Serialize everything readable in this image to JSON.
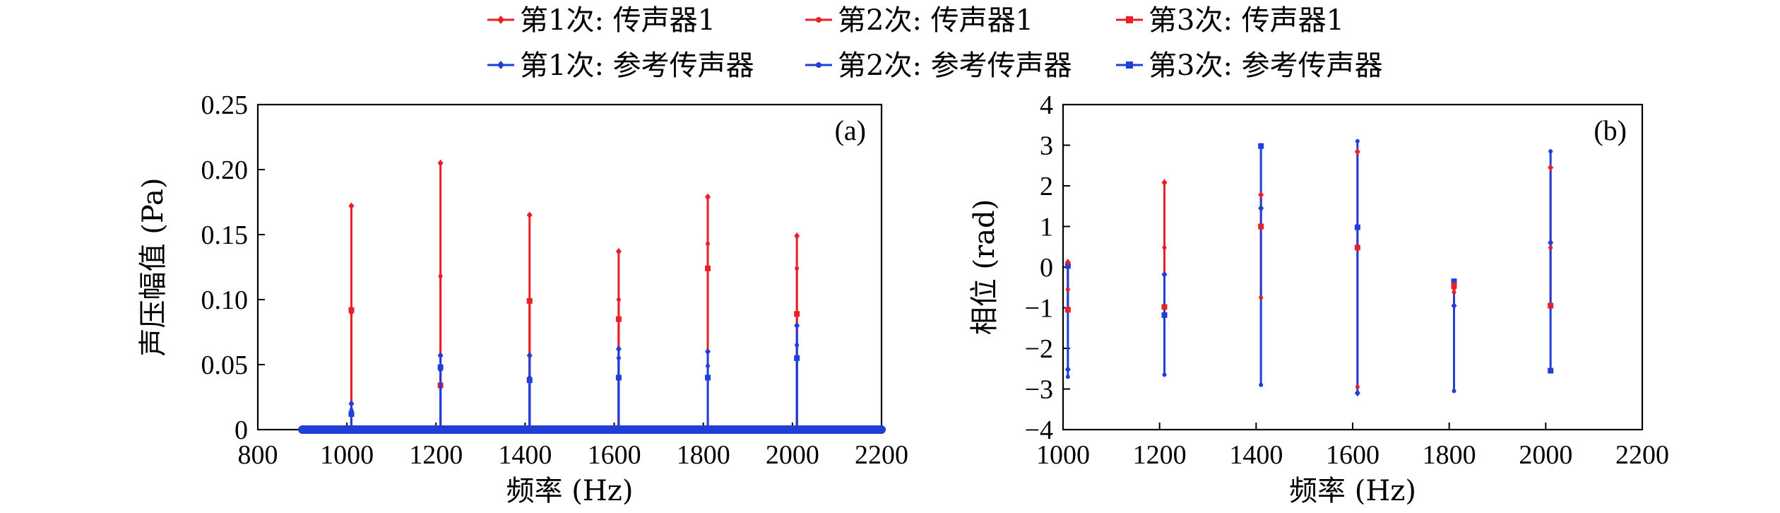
{
  "legend": {
    "position": "top-center",
    "columns": 3,
    "entries": [
      {
        "label": "第1次: 传声器1",
        "color": "#e8202a",
        "marker": "diamond"
      },
      {
        "label": "第2次: 传声器1",
        "color": "#e8202a",
        "marker": "dot"
      },
      {
        "label": "第3次: 传声器1",
        "color": "#e8202a",
        "marker": "square"
      },
      {
        "label": "第1次: 参考传声器",
        "color": "#1f3fd6",
        "marker": "diamond"
      },
      {
        "label": "第2次: 参考传声器",
        "color": "#1f3fd6",
        "marker": "dot"
      },
      {
        "label": "第3次: 参考传声器",
        "color": "#1f3fd6",
        "marker": "square"
      }
    ]
  },
  "chart_data": [
    {
      "panel": "(a)",
      "type": "line",
      "xlabel": "频率 (Hz)",
      "ylabel": "声压幅值 (Pa)",
      "xlim": [
        800,
        2200
      ],
      "ylim": [
        0,
        0.25
      ],
      "xticks": [
        800,
        1000,
        1200,
        1400,
        1600,
        1800,
        2000,
        2200
      ],
      "yticks": [
        0,
        0.05,
        0.1,
        0.15,
        0.2,
        0.25
      ],
      "ytick_labels": [
        "0",
        "0.05",
        "0.10",
        "0.15",
        "0.20",
        "0.25"
      ],
      "baseline_range": [
        900,
        2200
      ],
      "grid": false,
      "x": [
        1010,
        1210,
        1410,
        1610,
        1810,
        2010
      ],
      "series": [
        {
          "name": "第1次: 传声器1",
          "values": [
            0.172,
            0.205,
            0.165,
            0.137,
            0.179,
            0.149
          ]
        },
        {
          "name": "第2次: 传声器1",
          "values": [
            0.09,
            0.118,
            0.099,
            0.1,
            0.143,
            0.124
          ]
        },
        {
          "name": "第3次: 传声器1",
          "values": [
            0.092,
            0.034,
            0.099,
            0.085,
            0.124,
            0.089
          ]
        },
        {
          "name": "第1次: 参考传声器",
          "values": [
            0.02,
            0.057,
            0.057,
            0.062,
            0.06,
            0.08
          ]
        },
        {
          "name": "第2次: 参考传声器",
          "values": [
            0.015,
            0.046,
            0.04,
            0.055,
            0.049,
            0.065
          ]
        },
        {
          "name": "第3次: 参考传声器",
          "values": [
            0.012,
            0.048,
            0.038,
            0.04,
            0.04,
            0.055
          ]
        }
      ]
    },
    {
      "panel": "(b)",
      "type": "line",
      "xlabel": "频率 (Hz)",
      "ylabel": "相位 (rad)",
      "xlim": [
        1000,
        2200
      ],
      "ylim": [
        -4,
        4
      ],
      "xticks": [
        1000,
        1200,
        1400,
        1600,
        1800,
        2000,
        2200
      ],
      "yticks": [
        -4,
        -3,
        -2,
        -1,
        0,
        1,
        2,
        3,
        4
      ],
      "ytick_labels": [
        "−4",
        "−3",
        "−2",
        "−1",
        "0",
        "1",
        "2",
        "3",
        "4"
      ],
      "grid": false,
      "x": [
        1010,
        1210,
        1410,
        1610,
        1810,
        2010
      ],
      "series": [
        {
          "name": "第1次: 传声器1",
          "values": [
            0.12,
            2.08,
            1.78,
            2.84,
            -0.52,
            2.45
          ]
        },
        {
          "name": "第2次: 传声器1",
          "values": [
            -0.55,
            0.48,
            -0.75,
            -2.95,
            -0.62,
            0.48
          ]
        },
        {
          "name": "第3次: 传声器1",
          "values": [
            -1.05,
            -0.98,
            1.0,
            0.48,
            -0.45,
            -0.95
          ]
        },
        {
          "name": "第1次: 参考传声器",
          "values": [
            -2.52,
            -0.18,
            1.45,
            -3.1,
            -0.95,
            0.6
          ]
        },
        {
          "name": "第2次: 参考传声器",
          "values": [
            -2.7,
            -2.65,
            -2.9,
            3.1,
            -3.05,
            2.85
          ]
        },
        {
          "name": "第3次: 参考传声器",
          "values": [
            0.03,
            -1.18,
            2.98,
            0.98,
            -0.35,
            -2.55
          ]
        }
      ]
    }
  ]
}
